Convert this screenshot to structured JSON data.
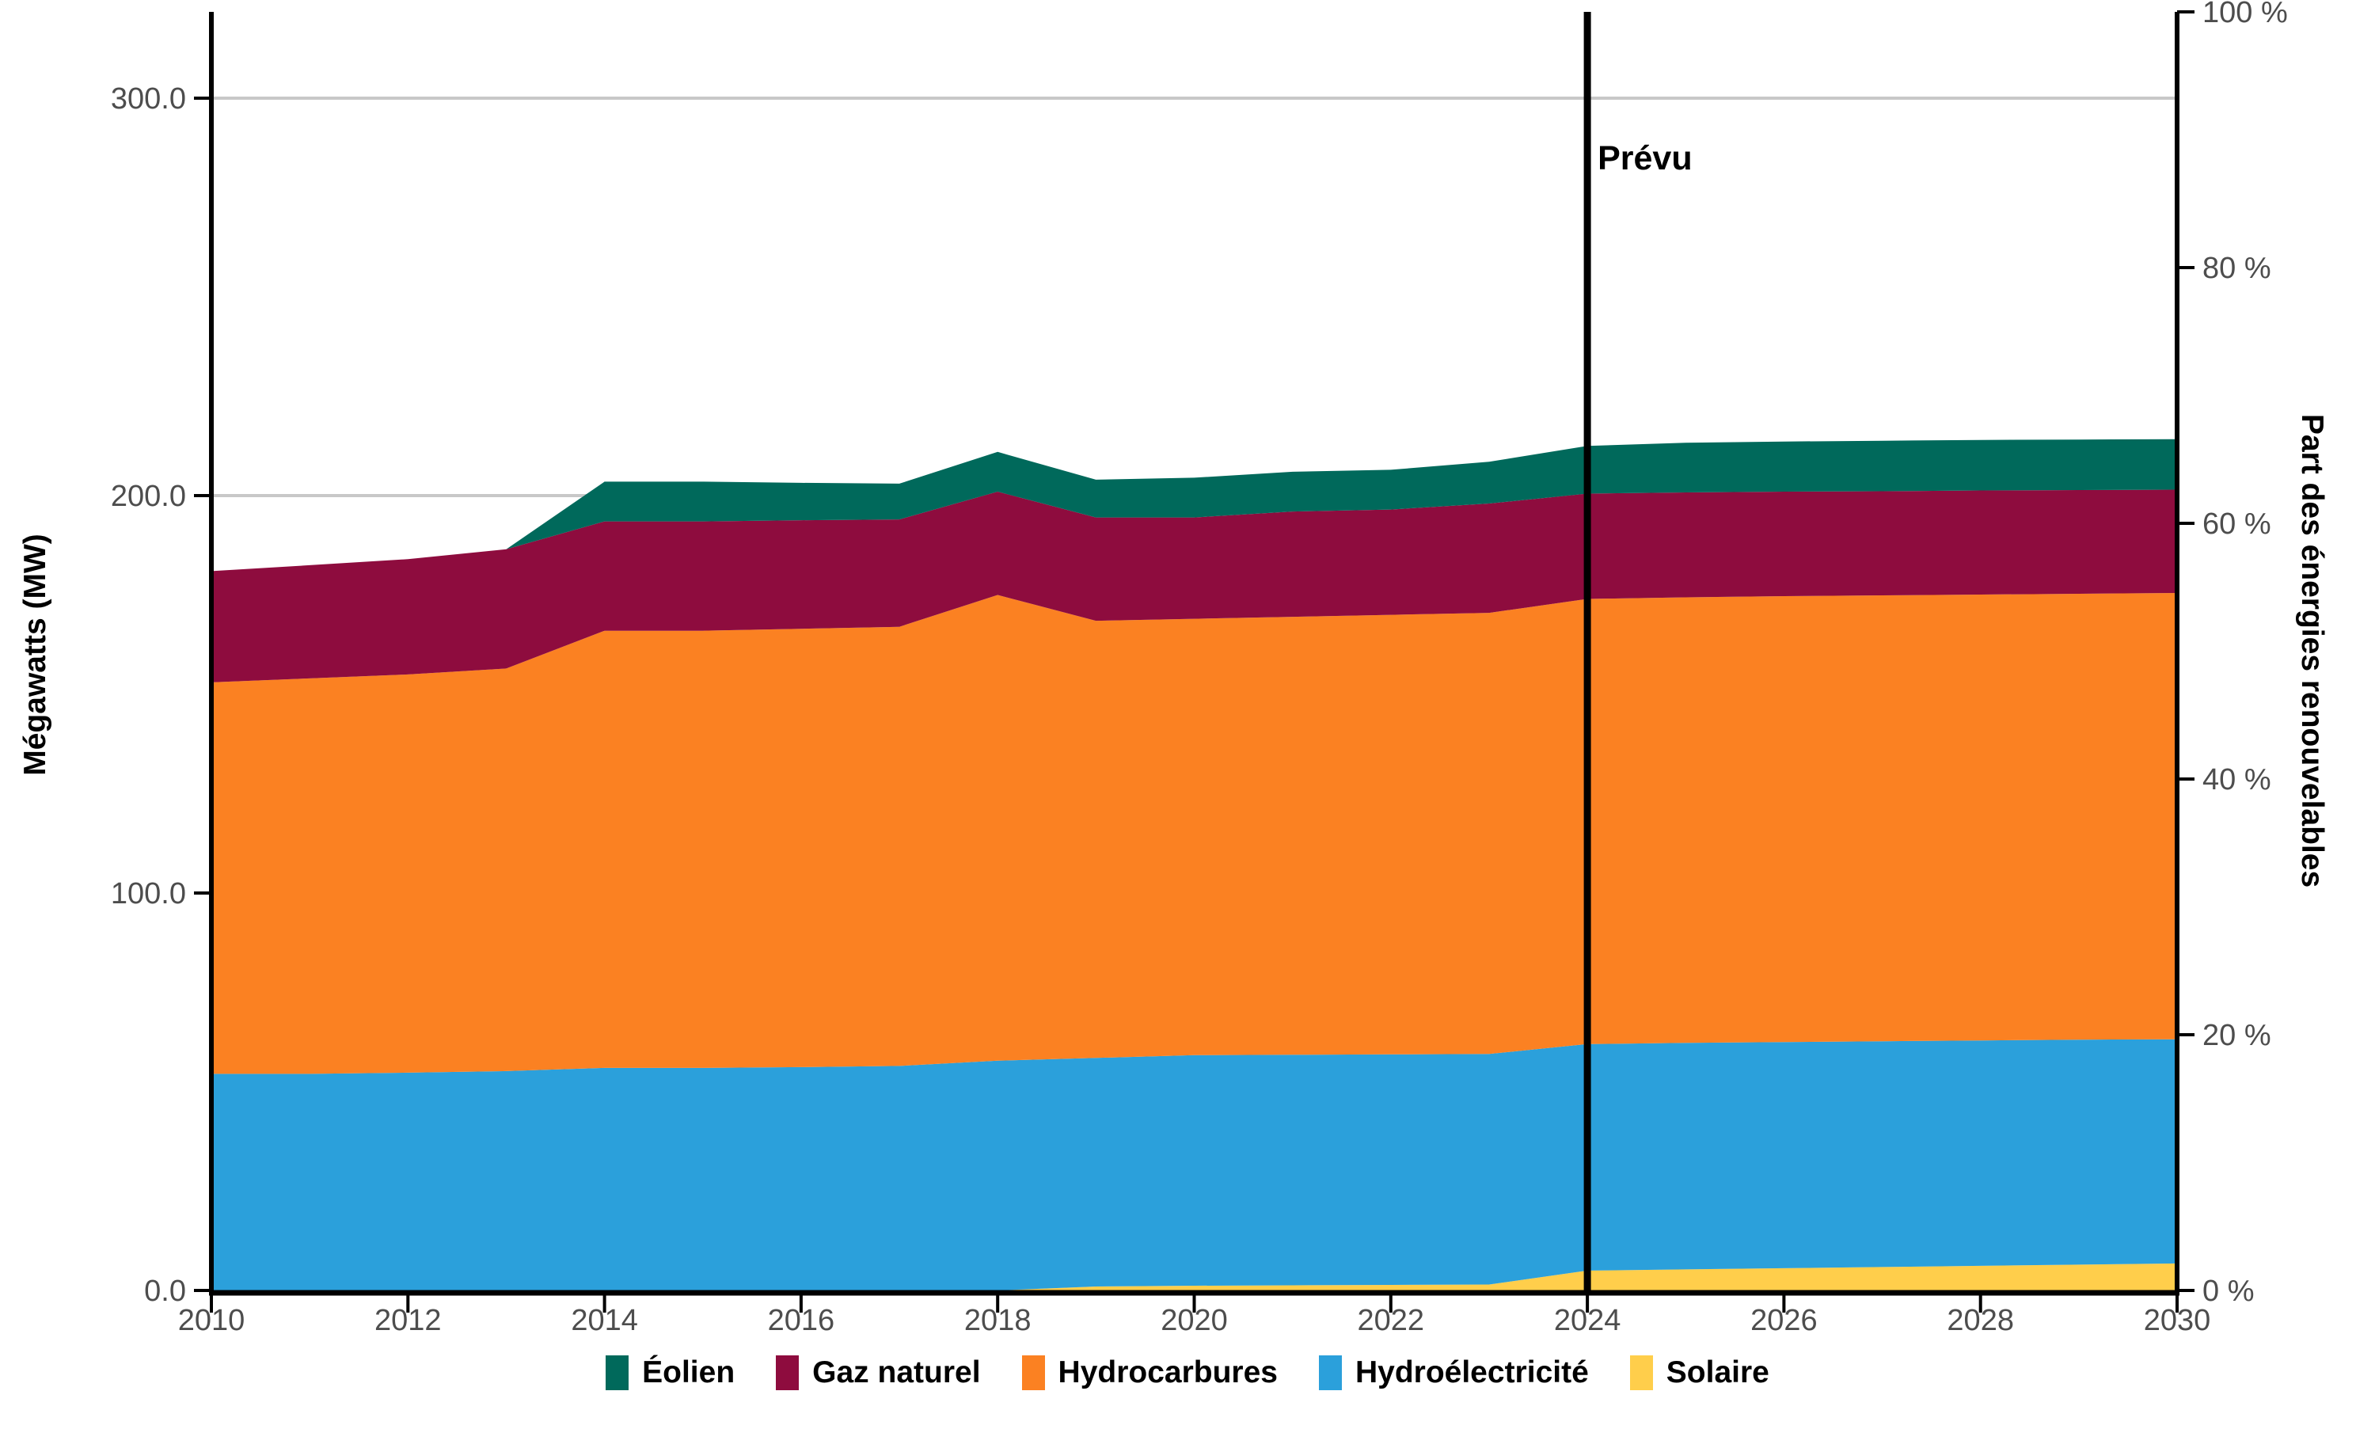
{
  "chart": {
    "left_axis": {
      "label": "Mégawatts (MW)",
      "tick_labels": [
        "0.0",
        "100.0",
        "200.0",
        "300.0"
      ],
      "tick_values": [
        0,
        100,
        200,
        300
      ]
    },
    "right_axis": {
      "label": "Part des énergies renouvelables",
      "tick_labels": [
        "0 %",
        "20 %",
        "40 %",
        "60 %",
        "80 %",
        "100 %"
      ],
      "tick_values": [
        0,
        20,
        40,
        60,
        80,
        100
      ]
    },
    "x_axis": {
      "tick_labels": [
        "2010",
        "2012",
        "2014",
        "2016",
        "2018",
        "2020",
        "2022",
        "2024",
        "2026",
        "2028",
        "2030"
      ],
      "tick_values": [
        2010,
        2012,
        2014,
        2016,
        2018,
        2020,
        2022,
        2024,
        2026,
        2028,
        2030
      ]
    },
    "annotation": {
      "label": "Prévu",
      "year": 2024
    },
    "colors": {
      "grid": "#C8C8C8",
      "axis": "#000000",
      "tick_text": "#4D4D4D",
      "background": "#FFFFFF",
      "forecast_line": "#000000"
    }
  },
  "chart_data": {
    "type": "area",
    "stacked": true,
    "title": "",
    "xlabel": "",
    "ylabel_left": "Mégawatts (MW)",
    "ylabel_right": "Part des énergies renouvelables",
    "x": [
      2010,
      2011,
      2012,
      2013,
      2014,
      2015,
      2016,
      2017,
      2018,
      2019,
      2020,
      2021,
      2022,
      2023,
      2024,
      2025,
      2026,
      2027,
      2028,
      2029,
      2030
    ],
    "x_range": [
      2010,
      2030
    ],
    "y_left_ticks": [
      0,
      100,
      200,
      300
    ],
    "y_right_ticks_pct": [
      0,
      20,
      40,
      60,
      80,
      100
    ],
    "grid": true,
    "legend_position": "bottom",
    "stack_order_bottom_to_top": [
      "Solaire",
      "Hydroélectricité",
      "Hydrocarbures",
      "Gaz naturel",
      "Éolien"
    ],
    "legend_order": [
      "Éolien",
      "Gaz naturel",
      "Hydrocarbures",
      "Hydroélectricité",
      "Solaire"
    ],
    "series": [
      {
        "name": "Solaire",
        "color": "#FFCE4B",
        "values": [
          0,
          0,
          0,
          0,
          0,
          0,
          0,
          0,
          0,
          1,
          1.2,
          1.3,
          1.4,
          1.5,
          5,
          5.3,
          5.6,
          5.9,
          6.2,
          6.5,
          6.8
        ]
      },
      {
        "name": "Hydroélectricité",
        "color": "#2BA0DB",
        "values": [
          54.5,
          54.5,
          54.8,
          55.2,
          56,
          56,
          56.2,
          56.5,
          57.8,
          57.5,
          58,
          58,
          58,
          58,
          57,
          57,
          56.9,
          56.8,
          56.7,
          56.6,
          56.4
        ]
      },
      {
        "name": "Hydrocarbures",
        "color": "#FB8122",
        "values": [
          98.5,
          99.5,
          100.2,
          101.3,
          110,
          110,
          110.3,
          110.5,
          117.2,
          110,
          109.8,
          110.2,
          110.6,
          111,
          112,
          112.1,
          112.2,
          112.2,
          112.2,
          112.2,
          112.3
        ]
      },
      {
        "name": "Gaz naturel",
        "color": "#8E0C3E",
        "values": [
          28,
          28.5,
          29,
          30,
          27.5,
          27.5,
          27.3,
          27,
          26,
          26,
          25.5,
          26.5,
          26.5,
          27.5,
          26.5,
          26.4,
          26.3,
          26.2,
          26.2,
          26.1,
          26
        ]
      },
      {
        "name": "Éolien",
        "color": "#00695B",
        "values": [
          0,
          0,
          0,
          0,
          10,
          10,
          9.4,
          9,
          10,
          9.5,
          10,
          10,
          10,
          10.5,
          12,
          12.5,
          12.6,
          12.7,
          12.7,
          12.7,
          12.7
        ]
      }
    ],
    "annotation": {
      "label": "Prévu",
      "at_year": 2024
    }
  }
}
